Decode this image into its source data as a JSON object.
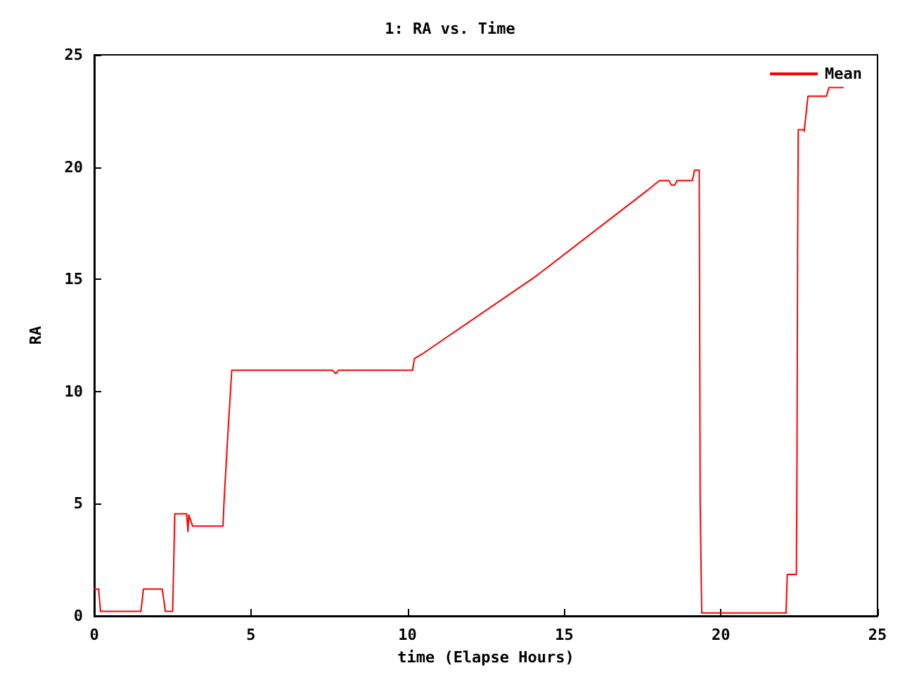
{
  "chart_data": {
    "type": "line",
    "title": "1: RA vs. Time",
    "xlabel": "time (Elapse Hours)",
    "ylabel": "RA",
    "xlim": [
      0,
      25
    ],
    "xticks": [
      0,
      5,
      10,
      15,
      20,
      25
    ],
    "ylim": [
      0,
      25
    ],
    "yticks": [
      0,
      5,
      10,
      15,
      20,
      25
    ],
    "grid": false,
    "legend": "top right",
    "marker": "none",
    "line_style": "solid",
    "series": [
      {
        "name": "Mean",
        "color": "#ff0000",
        "x": [
          0,
          0.14,
          0.2,
          1.49,
          1.57,
          2.17,
          2.27,
          2.5,
          2.52,
          2.57,
          2.95,
          2.99,
          3.02,
          3.05,
          3.14,
          4.11,
          4.14,
          4.26,
          4.39,
          7.6,
          7.71,
          7.8,
          10.16,
          10.22,
          10.5,
          14.08,
          17.67,
          18.04,
          18.34,
          18.42,
          18.53,
          18.6,
          19.09,
          19.16,
          19.31,
          19.32,
          19.34,
          19.39,
          22.08,
          22.12,
          22.41,
          22.43,
          22.45,
          22.47,
          22.64,
          22.66,
          22.78,
          23.37,
          23.45,
          23.9
        ],
        "values": [
          1.2,
          1.2,
          0.2,
          0.2,
          1.2,
          1.2,
          0.2,
          0.2,
          1.2,
          4.55,
          4.55,
          3.76,
          4.5,
          4.5,
          4.0,
          4.0,
          5.0,
          8.0,
          10.95,
          10.95,
          10.8,
          10.95,
          10.95,
          11.47,
          11.7,
          15.12,
          18.98,
          19.4,
          19.4,
          19.2,
          19.2,
          19.4,
          19.4,
          19.86,
          19.86,
          14.9,
          5.0,
          0.13,
          0.13,
          1.85,
          1.85,
          6.8,
          16.7,
          21.66,
          21.66,
          21.6,
          23.16,
          23.16,
          23.54,
          23.54
        ]
      }
    ]
  }
}
